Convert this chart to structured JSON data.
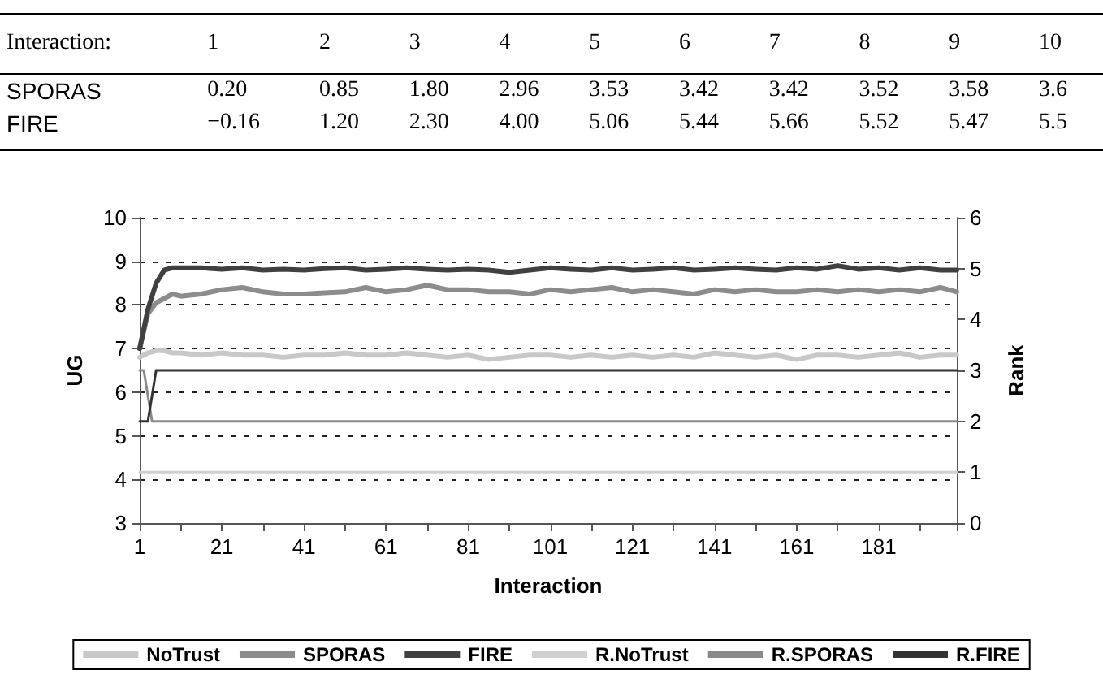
{
  "chart_data": [
    {
      "type": "heatmap",
      "xlabel": "Interaction:",
      "categories": [
        "1",
        "2",
        "3",
        "4",
        "5",
        "6",
        "7",
        "8",
        "9",
        "10"
      ],
      "y_categories": [
        "SPORAS",
        "FIRE"
      ],
      "cells": [
        [
          0.2,
          0.85,
          1.8,
          2.96,
          3.53,
          3.42,
          3.42,
          3.52,
          3.58,
          3.6
        ],
        [
          -0.16,
          1.2,
          2.3,
          4.0,
          5.06,
          5.44,
          5.66,
          5.52,
          5.47,
          5.5
        ]
      ],
      "cell_labels": [
        [
          "0.20",
          "0.85",
          "1.80",
          "2.96",
          "3.53",
          "3.42",
          "3.42",
          "3.52",
          "3.58",
          "3.6"
        ],
        [
          "−0.16",
          "1.20",
          "2.30",
          "4.00",
          "5.06",
          "5.44",
          "5.66",
          "5.52",
          "5.47",
          "5.5"
        ]
      ]
    },
    {
      "type": "line",
      "xlabel": "Interaction",
      "ylabel": "UG",
      "y2label": "Rank",
      "x": [
        1,
        3,
        5,
        7,
        9,
        11,
        16,
        21,
        26,
        31,
        36,
        41,
        46,
        51,
        56,
        61,
        66,
        71,
        76,
        81,
        86,
        91,
        96,
        101,
        106,
        111,
        116,
        121,
        126,
        131,
        136,
        141,
        146,
        151,
        156,
        161,
        166,
        171,
        176,
        181,
        186,
        191,
        196,
        200
      ],
      "xlim": [
        1,
        200
      ],
      "xticks": [
        1,
        {
          "value": 11,
          "label": null
        },
        21,
        {
          "value": 31,
          "label": null
        },
        41,
        {
          "value": 51,
          "label": null
        },
        61,
        {
          "value": 71,
          "label": null
        },
        81,
        {
          "value": 91,
          "label": null
        },
        101,
        {
          "value": 111,
          "label": null
        },
        121,
        {
          "value": 131,
          "label": null
        },
        141,
        {
          "value": 151,
          "label": null
        },
        161,
        {
          "value": 171,
          "label": null
        },
        181,
        {
          "value": 191,
          "label": null
        },
        {
          "value": 200,
          "label": null
        }
      ],
      "ylim": [
        3,
        10
      ],
      "yticks": [
        3,
        4,
        5,
        6,
        7,
        8,
        9,
        10
      ],
      "y2lim": [
        0,
        6
      ],
      "y2ticks": [
        0,
        1,
        2,
        3,
        4,
        5,
        6
      ],
      "grid": "y",
      "legend": "bottom",
      "marker": "none",
      "series": [
        {
          "name": "NoTrust",
          "color": "#c8c8c8",
          "values": [
            6.8,
            6.9,
            6.95,
            6.95,
            6.9,
            6.9,
            6.85,
            6.9,
            6.85,
            6.85,
            6.8,
            6.85,
            6.85,
            6.9,
            6.85,
            6.85,
            6.9,
            6.85,
            6.8,
            6.85,
            6.75,
            6.8,
            6.85,
            6.85,
            6.8,
            6.85,
            6.8,
            6.85,
            6.8,
            6.85,
            6.8,
            6.9,
            6.85,
            6.8,
            6.85,
            6.75,
            6.85,
            6.85,
            6.8,
            6.85,
            6.9,
            6.8,
            6.85,
            6.85
          ]
        },
        {
          "name": "SPORAS",
          "color": "#8c8c8c",
          "values": [
            7.0,
            7.8,
            8.05,
            8.15,
            8.25,
            8.2,
            8.25,
            8.35,
            8.4,
            8.3,
            8.25,
            8.25,
            8.28,
            8.3,
            8.4,
            8.3,
            8.35,
            8.45,
            8.35,
            8.35,
            8.3,
            8.3,
            8.25,
            8.35,
            8.3,
            8.35,
            8.4,
            8.3,
            8.35,
            8.3,
            8.25,
            8.35,
            8.3,
            8.35,
            8.3,
            8.3,
            8.35,
            8.3,
            8.35,
            8.3,
            8.35,
            8.3,
            8.4,
            8.3
          ]
        },
        {
          "name": "FIRE",
          "color": "#404040",
          "values": [
            7.0,
            7.9,
            8.5,
            8.8,
            8.85,
            8.85,
            8.85,
            8.82,
            8.85,
            8.8,
            8.82,
            8.8,
            8.83,
            8.85,
            8.8,
            8.82,
            8.85,
            8.82,
            8.8,
            8.82,
            8.8,
            8.75,
            8.8,
            8.85,
            8.82,
            8.8,
            8.85,
            8.8,
            8.82,
            8.85,
            8.8,
            8.82,
            8.85,
            8.82,
            8.8,
            8.85,
            8.82,
            8.9,
            8.82,
            8.85,
            8.8,
            8.85,
            8.8,
            8.8
          ]
        },
        {
          "name": "R.NoTrust",
          "color": "#d0d0d0",
          "axis": "y2",
          "x": [
            1,
            200
          ],
          "values": [
            1,
            1
          ]
        },
        {
          "name": "R.SPORAS",
          "color": "#8a8a8a",
          "axis": "y2",
          "x": [
            1,
            2,
            4,
            200
          ],
          "values": [
            3,
            3,
            2,
            2
          ]
        },
        {
          "name": "R.FIRE",
          "color": "#333333",
          "axis": "y2",
          "x": [
            1,
            3,
            5,
            200
          ],
          "values": [
            2,
            2,
            3,
            3
          ]
        }
      ]
    }
  ]
}
